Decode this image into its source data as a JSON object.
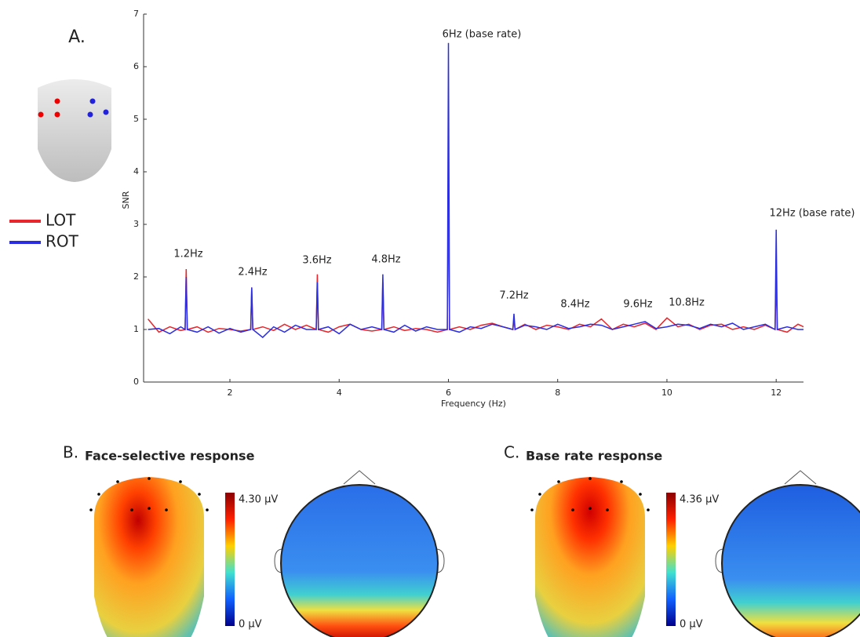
{
  "panel_label": "A.",
  "chart_data": {
    "type": "line",
    "x_label": "Frequency (Hz)",
    "y_label": "SNR",
    "xlim": [
      0.42,
      12.5
    ],
    "ylim": [
      0,
      7
    ],
    "xticks": [
      2,
      4,
      6,
      8,
      10,
      12
    ],
    "yticks": [
      0,
      1,
      2,
      3,
      4,
      5,
      6,
      7
    ],
    "annotations": [
      "1.2Hz",
      "2.4Hz",
      "3.6Hz",
      "4.8Hz",
      "6Hz (base rate)",
      "7.2Hz",
      "8.4Hz",
      "9.6Hz",
      "10.8Hz",
      "12Hz (base rate)"
    ],
    "x": [
      0.5,
      0.7,
      0.9,
      1.1,
      1.18,
      1.2,
      1.22,
      1.4,
      1.6,
      1.8,
      2.0,
      2.2,
      2.38,
      2.4,
      2.42,
      2.6,
      2.8,
      3.0,
      3.2,
      3.4,
      3.58,
      3.6,
      3.62,
      3.8,
      4.0,
      4.2,
      4.4,
      4.6,
      4.78,
      4.8,
      4.82,
      5.0,
      5.2,
      5.4,
      5.6,
      5.8,
      5.98,
      6.0,
      6.02,
      6.2,
      6.4,
      6.6,
      6.8,
      7.0,
      7.18,
      7.2,
      7.22,
      7.4,
      7.6,
      7.8,
      8.0,
      8.2,
      8.4,
      8.6,
      8.8,
      9.0,
      9.2,
      9.4,
      9.6,
      9.8,
      10.0,
      10.2,
      10.4,
      10.6,
      10.8,
      11.0,
      11.2,
      11.4,
      11.6,
      11.8,
      11.98,
      12.0,
      12.02,
      12.2,
      12.4,
      12.5
    ],
    "series": [
      {
        "name": "LOT",
        "color": "#e8262b",
        "values": [
          1.2,
          0.95,
          1.05,
          0.98,
          1.0,
          2.15,
          1.0,
          1.05,
          0.95,
          1.02,
          1.0,
          0.97,
          1.0,
          1.8,
          1.0,
          1.05,
          0.98,
          1.1,
          1.0,
          1.08,
          1.0,
          2.05,
          1.0,
          0.95,
          1.05,
          1.1,
          1.0,
          0.97,
          1.0,
          1.9,
          1.0,
          1.05,
          0.98,
          1.02,
          1.0,
          0.95,
          1.0,
          3.8,
          1.0,
          1.05,
          1.0,
          1.08,
          1.12,
          1.05,
          1.0,
          1.2,
          1.0,
          1.1,
          1.0,
          1.08,
          1.05,
          1.0,
          1.1,
          1.05,
          1.2,
          1.0,
          1.1,
          1.05,
          1.12,
          1.0,
          1.22,
          1.05,
          1.1,
          1.0,
          1.08,
          1.1,
          1.0,
          1.05,
          1.0,
          1.08,
          1.0,
          2.0,
          1.0,
          0.95,
          1.1,
          1.05
        ]
      },
      {
        "name": "ROT",
        "color": "#2b2ee0",
        "values": [
          1.0,
          1.02,
          0.92,
          1.05,
          1.0,
          2.0,
          1.0,
          0.95,
          1.05,
          0.93,
          1.02,
          0.95,
          1.0,
          1.8,
          1.0,
          0.85,
          1.05,
          0.95,
          1.08,
          1.0,
          1.0,
          1.9,
          1.0,
          1.05,
          0.92,
          1.1,
          1.0,
          1.05,
          1.0,
          2.05,
          1.0,
          0.95,
          1.08,
          0.97,
          1.05,
          1.0,
          1.0,
          6.45,
          1.0,
          0.95,
          1.05,
          1.02,
          1.1,
          1.05,
          1.0,
          1.3,
          1.0,
          1.08,
          1.05,
          1.0,
          1.1,
          1.02,
          1.05,
          1.1,
          1.08,
          1.0,
          1.05,
          1.1,
          1.15,
          1.02,
          1.05,
          1.1,
          1.08,
          1.02,
          1.1,
          1.05,
          1.12,
          1.0,
          1.05,
          1.1,
          1.0,
          2.9,
          1.0,
          1.05,
          1.0,
          1.0
        ]
      }
    ]
  },
  "panels": [
    {
      "label": "B.",
      "title": "Face-selective response",
      "scale_max": "4.30 µV",
      "scale_min": "0 µV"
    },
    {
      "label": "C.",
      "title": "Base rate response",
      "scale_max": "4.36 µV",
      "scale_min": "0 µV"
    }
  ]
}
